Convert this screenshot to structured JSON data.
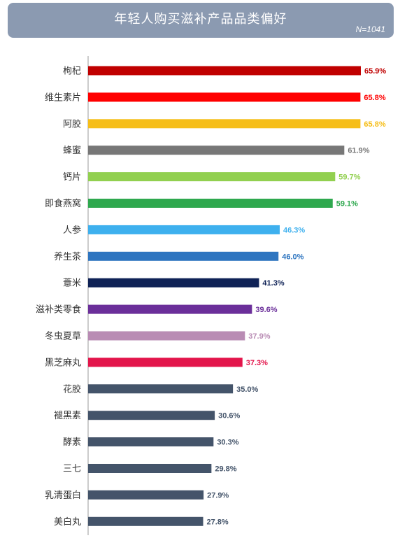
{
  "header": {
    "title": "年轻人购买滋补产品品类偏好",
    "sample": "N=1041"
  },
  "chart_data": {
    "type": "bar",
    "orientation": "horizontal",
    "categories": [
      "枸杞",
      "维生素片",
      "阿胶",
      "蜂蜜",
      "钙片",
      "即食燕窝",
      "人参",
      "养生茶",
      "薏米",
      "滋补类零食",
      "冬虫夏草",
      "黑芝麻丸",
      "花胶",
      "褪黑素",
      "酵素",
      "三七",
      "乳清蛋白",
      "美白丸"
    ],
    "values": [
      65.9,
      65.8,
      65.8,
      61.9,
      59.7,
      59.1,
      46.3,
      46.0,
      41.3,
      39.6,
      37.9,
      37.3,
      35.0,
      30.6,
      30.3,
      29.8,
      27.9,
      27.8
    ],
    "value_labels": [
      "65.9%",
      "65.8%",
      "65.8%",
      "61.9%",
      "59.7%",
      "59.1%",
      "46.3%",
      "46.0%",
      "41.3%",
      "39.6%",
      "37.9%",
      "37.3%",
      "35.0%",
      "30.6%",
      "30.3%",
      "29.8%",
      "27.9%",
      "27.8%"
    ],
    "colors": [
      "#c00000",
      "#ff0000",
      "#f6be19",
      "#777777",
      "#92d050",
      "#2ea84e",
      "#3eb0ee",
      "#2e75c0",
      "#0f2256",
      "#6b2f9a",
      "#b98cb4",
      "#e3154b",
      "#44546a",
      "#44546a",
      "#44546a",
      "#44546a",
      "#44546a",
      "#44546a"
    ],
    "unit": "%",
    "xlim": [
      0,
      70
    ],
    "grid": false,
    "legend": "none"
  }
}
